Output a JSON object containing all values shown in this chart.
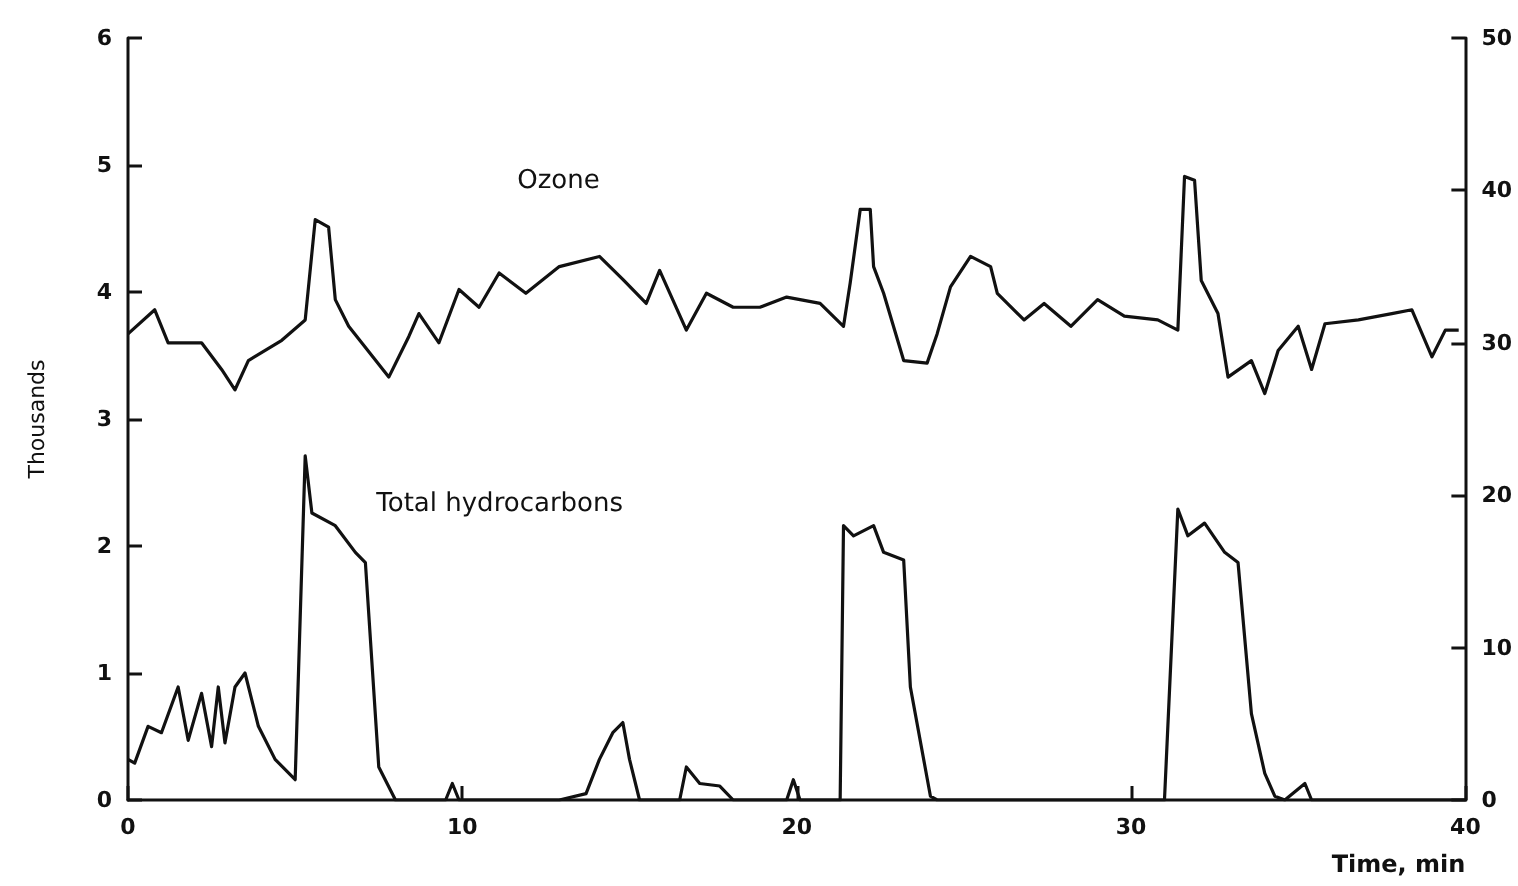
{
  "chart_data": {
    "type": "line",
    "xlabel": "Time, min",
    "ylabel": "Thousands",
    "xlim": [
      0,
      40
    ],
    "xticks": [
      0,
      10,
      20,
      30,
      40
    ],
    "ylim": [
      0,
      6
    ],
    "yticks": [
      0,
      1,
      2,
      3,
      4,
      5,
      6
    ],
    "y2lim": [
      0,
      50
    ],
    "y2ticks": [
      0,
      10,
      20,
      30,
      40,
      50
    ],
    "grid": false,
    "legend": false,
    "series": [
      {
        "name": "Ozone",
        "color": "#111111",
        "x": [
          0,
          0.8,
          1.2,
          2.2,
          2.8,
          3.2,
          3.6,
          4.6,
          5.3,
          5.6,
          6.0,
          6.2,
          6.6,
          7.8,
          8.4,
          8.7,
          9.3,
          9.9,
          10.5,
          11.1,
          11.9,
          12.9,
          14.1,
          14.8,
          15.5,
          15.9,
          16.7,
          17.3,
          18.1,
          18.9,
          19.7,
          20.7,
          21.4,
          21.6,
          21.9,
          22.2,
          22.3,
          22.6,
          23.2,
          23.9,
          24.2,
          24.6,
          25.2,
          25.8,
          26.0,
          26.8,
          27.4,
          28.2,
          29.0,
          29.8,
          30.8,
          31.4,
          31.6,
          31.9,
          32.1,
          32.6,
          32.9,
          33.6,
          34.0,
          34.4,
          35.0,
          35.4,
          35.8,
          36.8,
          37.8,
          38.4,
          39.0,
          39.4,
          39.8
        ],
        "values": [
          3.67,
          3.86,
          3.6,
          3.6,
          3.39,
          3.23,
          3.46,
          3.62,
          3.78,
          4.57,
          4.51,
          3.94,
          3.73,
          3.33,
          3.65,
          3.83,
          3.6,
          4.02,
          3.88,
          4.15,
          3.99,
          4.2,
          4.28,
          4.1,
          3.91,
          4.17,
          3.7,
          3.99,
          3.88,
          3.88,
          3.96,
          3.91,
          3.73,
          4.07,
          4.65,
          4.65,
          4.2,
          3.99,
          3.46,
          3.44,
          3.67,
          4.04,
          4.28,
          4.2,
          3.99,
          3.78,
          3.91,
          3.73,
          3.94,
          3.81,
          3.78,
          3.7,
          4.91,
          4.88,
          4.09,
          3.83,
          3.33,
          3.46,
          3.2,
          3.54,
          3.73,
          3.39,
          3.75,
          3.78,
          3.83,
          3.86,
          3.49,
          3.7,
          3.7
        ]
      },
      {
        "name": "Total hydrocarbons",
        "color": "#111111",
        "x": [
          0,
          0.2,
          0.6,
          1.0,
          1.5,
          1.8,
          2.2,
          2.5,
          2.7,
          2.9,
          3.2,
          3.5,
          3.9,
          4.4,
          5.0,
          5.3,
          5.5,
          6.2,
          6.8,
          7.1,
          7.5,
          8.0,
          9.5,
          9.7,
          9.9,
          12.9,
          13.7,
          14.1,
          14.5,
          14.8,
          15.0,
          15.3,
          16.5,
          16.7,
          17.1,
          17.7,
          18.1,
          19.7,
          19.9,
          20.1,
          21.3,
          21.4,
          21.7,
          22.3,
          22.6,
          23.2,
          23.4,
          24.0,
          24.2,
          31.0,
          31.4,
          31.7,
          32.2,
          32.8,
          33.2,
          33.6,
          34.0,
          34.3,
          34.6,
          35.2,
          35.4,
          40
        ],
        "values": [
          0.32,
          0.29,
          0.58,
          0.53,
          0.89,
          0.47,
          0.84,
          0.42,
          0.89,
          0.45,
          0.89,
          1.0,
          0.58,
          0.32,
          0.16,
          2.71,
          2.26,
          2.16,
          1.95,
          1.87,
          0.26,
          0,
          0,
          0.13,
          0,
          0,
          0.05,
          0.32,
          0.53,
          0.61,
          0.32,
          0,
          0,
          0.26,
          0.13,
          0.11,
          0,
          0,
          0.16,
          0,
          0,
          2.16,
          2.08,
          2.16,
          1.95,
          1.89,
          0.89,
          0.03,
          0,
          0,
          2.29,
          2.08,
          2.18,
          1.95,
          1.87,
          0.68,
          0.21,
          0.03,
          0,
          0.13,
          0,
          0
        ]
      }
    ]
  }
}
